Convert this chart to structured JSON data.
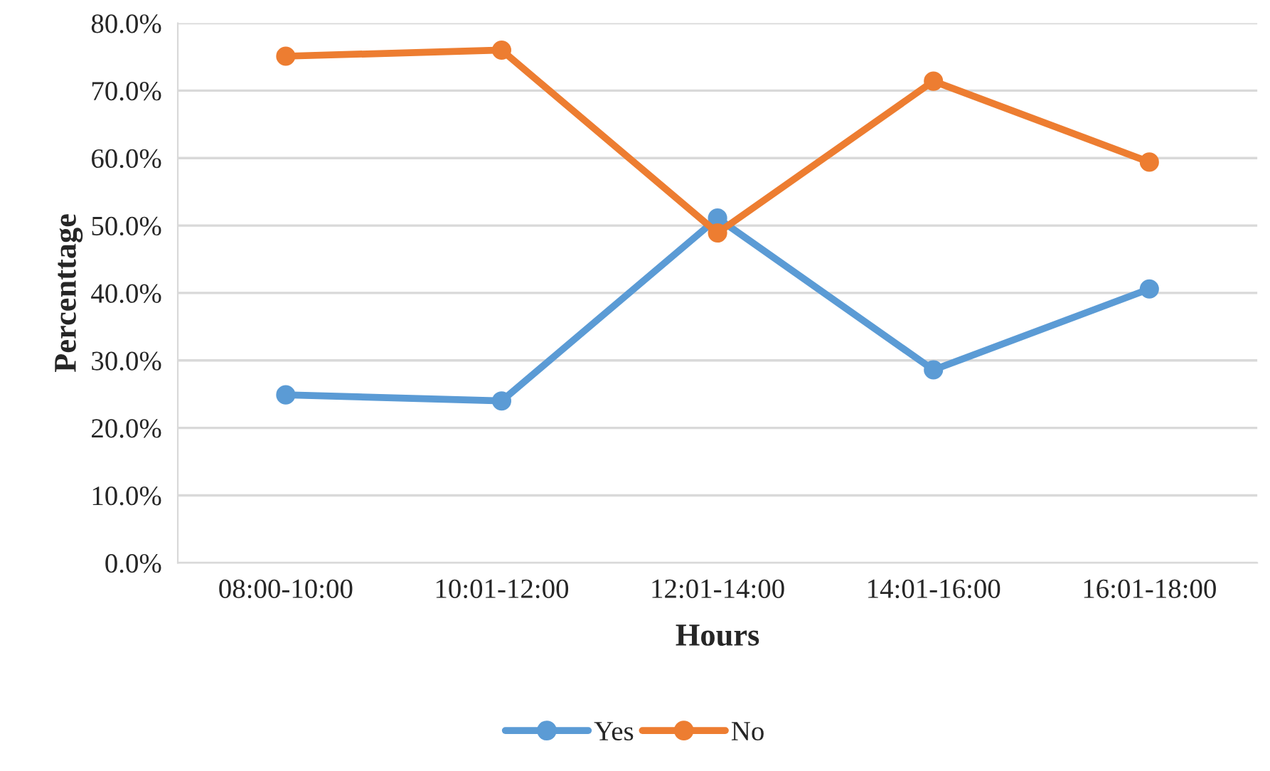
{
  "chart_data": {
    "type": "line",
    "xlabel": "Hours",
    "ylabel": "Percenttage",
    "categories": [
      "08:00-10:00",
      "10:01-12:00",
      "12:01-14:00",
      "14:01-16:00",
      "16:01-18:00"
    ],
    "series": [
      {
        "name": "Yes",
        "color": "#5b9bd5",
        "values": [
          24.9,
          24.0,
          51.1,
          28.6,
          40.6
        ]
      },
      {
        "name": "No",
        "color": "#ed7d31",
        "values": [
          75.1,
          76.0,
          48.9,
          71.4,
          59.4
        ]
      }
    ],
    "ylim": [
      0,
      80
    ],
    "yticks": [
      {
        "value": 0,
        "label": "0.0%"
      },
      {
        "value": 10,
        "label": "10.0%"
      },
      {
        "value": 20,
        "label": "20.0%"
      },
      {
        "value": 30,
        "label": "30.0%"
      },
      {
        "value": 40,
        "label": "40.0%"
      },
      {
        "value": 50,
        "label": "50.0%"
      },
      {
        "value": 60,
        "label": "60.0%"
      },
      {
        "value": 70,
        "label": "70.0%"
      },
      {
        "value": 80,
        "label": "80.0%"
      }
    ],
    "grid": "y",
    "legend": "bottom",
    "marker": "circle",
    "line_style": "solid"
  }
}
